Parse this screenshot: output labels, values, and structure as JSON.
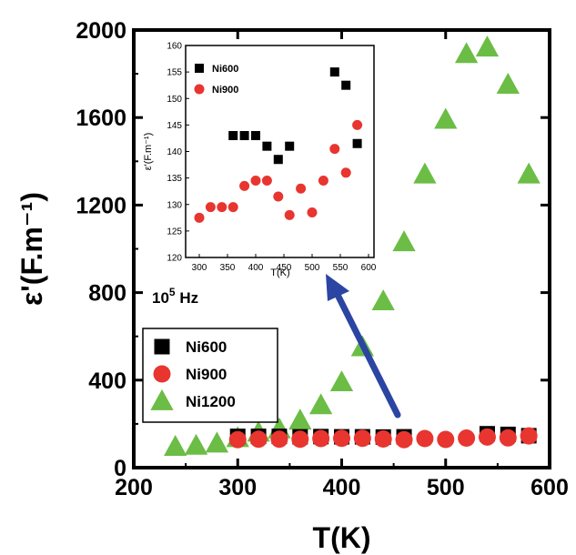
{
  "chart_data": [
    {
      "type": "scatter",
      "title": "",
      "xlabel": "T(K)",
      "ylabel": "ε'(F.m⁻¹)",
      "xlim": [
        200,
        600
      ],
      "ylim": [
        0,
        2000
      ],
      "xticks": [
        "200",
        "300",
        "400",
        "500",
        "600"
      ],
      "yticks": [
        "0",
        "400",
        "800",
        "1200",
        "1600",
        "2000"
      ],
      "legend_position": "lower-left",
      "series": [
        {
          "name": "Ni600",
          "marker": "square",
          "color": "#000000",
          "points": [
            [
              300,
              143
            ],
            [
              320,
              143
            ],
            [
              340,
              143
            ],
            [
              360,
              141
            ],
            [
              380,
              142
            ],
            [
              400,
              141
            ],
            [
              420,
              141
            ],
            [
              440,
              140
            ],
            [
              460,
              141
            ],
            [
              540,
              155
            ],
            [
              560,
              152
            ],
            [
              580,
              146
            ]
          ]
        },
        {
          "name": "Ni900",
          "marker": "circle",
          "color": "#e8352f",
          "points": [
            [
              300,
              128
            ],
            [
              320,
              130
            ],
            [
              340,
              130
            ],
            [
              360,
              130
            ],
            [
              380,
              133
            ],
            [
              400,
              134
            ],
            [
              420,
              134
            ],
            [
              440,
              131
            ],
            [
              460,
              128
            ],
            [
              480,
              133
            ],
            [
              500,
              129
            ],
            [
              520,
              135
            ],
            [
              540,
              140
            ],
            [
              560,
              136
            ],
            [
              580,
              145
            ]
          ]
        },
        {
          "name": "Ni1200",
          "marker": "triangle",
          "color": "#6bbd45",
          "points": [
            [
              240,
              95
            ],
            [
              260,
              100
            ],
            [
              280,
              110
            ],
            [
              300,
              135
            ],
            [
              320,
              160
            ],
            [
              340,
              175
            ],
            [
              360,
              215
            ],
            [
              380,
              285
            ],
            [
              400,
              390
            ],
            [
              420,
              550
            ],
            [
              440,
              760
            ],
            [
              460,
              1030
            ],
            [
              480,
              1340
            ],
            [
              500,
              1590
            ],
            [
              520,
              1890
            ],
            [
              540,
              1920
            ],
            [
              560,
              1750
            ],
            [
              580,
              1340
            ]
          ]
        }
      ]
    },
    {
      "type": "scatter",
      "title": "",
      "xlabel": "T(K)",
      "ylabel": "ε'(F.m⁻¹)",
      "xlim": [
        285,
        595
      ],
      "ylim": [
        120,
        160
      ],
      "xticks": [
        "300",
        "350",
        "400",
        "450",
        "500",
        "550",
        "600"
      ],
      "yticks": [
        "120",
        "125",
        "130",
        "135",
        "140",
        "145",
        "150",
        "155",
        "160"
      ],
      "legend_position": "top-left",
      "series": [
        {
          "name": "Ni600",
          "marker": "square",
          "color": "#000000",
          "points": [
            [
              360,
              143
            ],
            [
              380,
              143
            ],
            [
              400,
              143
            ],
            [
              420,
              141
            ],
            [
              440,
              138.5
            ],
            [
              460,
              141
            ],
            [
              540,
              155
            ],
            [
              560,
              152.5
            ],
            [
              580,
              141.5
            ]
          ]
        },
        {
          "name": "Ni900",
          "marker": "circle",
          "color": "#e8352f",
          "points": [
            [
              300,
              127.5
            ],
            [
              320,
              129.5
            ],
            [
              340,
              129.5
            ],
            [
              360,
              129.5
            ],
            [
              380,
              133.5
            ],
            [
              400,
              134.5
            ],
            [
              420,
              134.5
            ],
            [
              440,
              131.5
            ],
            [
              460,
              128
            ],
            [
              480,
              133
            ],
            [
              500,
              128.5
            ],
            [
              520,
              134.5
            ],
            [
              540,
              140.5
            ],
            [
              560,
              136
            ],
            [
              580,
              145
            ]
          ]
        }
      ]
    }
  ],
  "annotations": {
    "frequency": "10^5 Hz",
    "arrow_color": "#2c45a3"
  }
}
